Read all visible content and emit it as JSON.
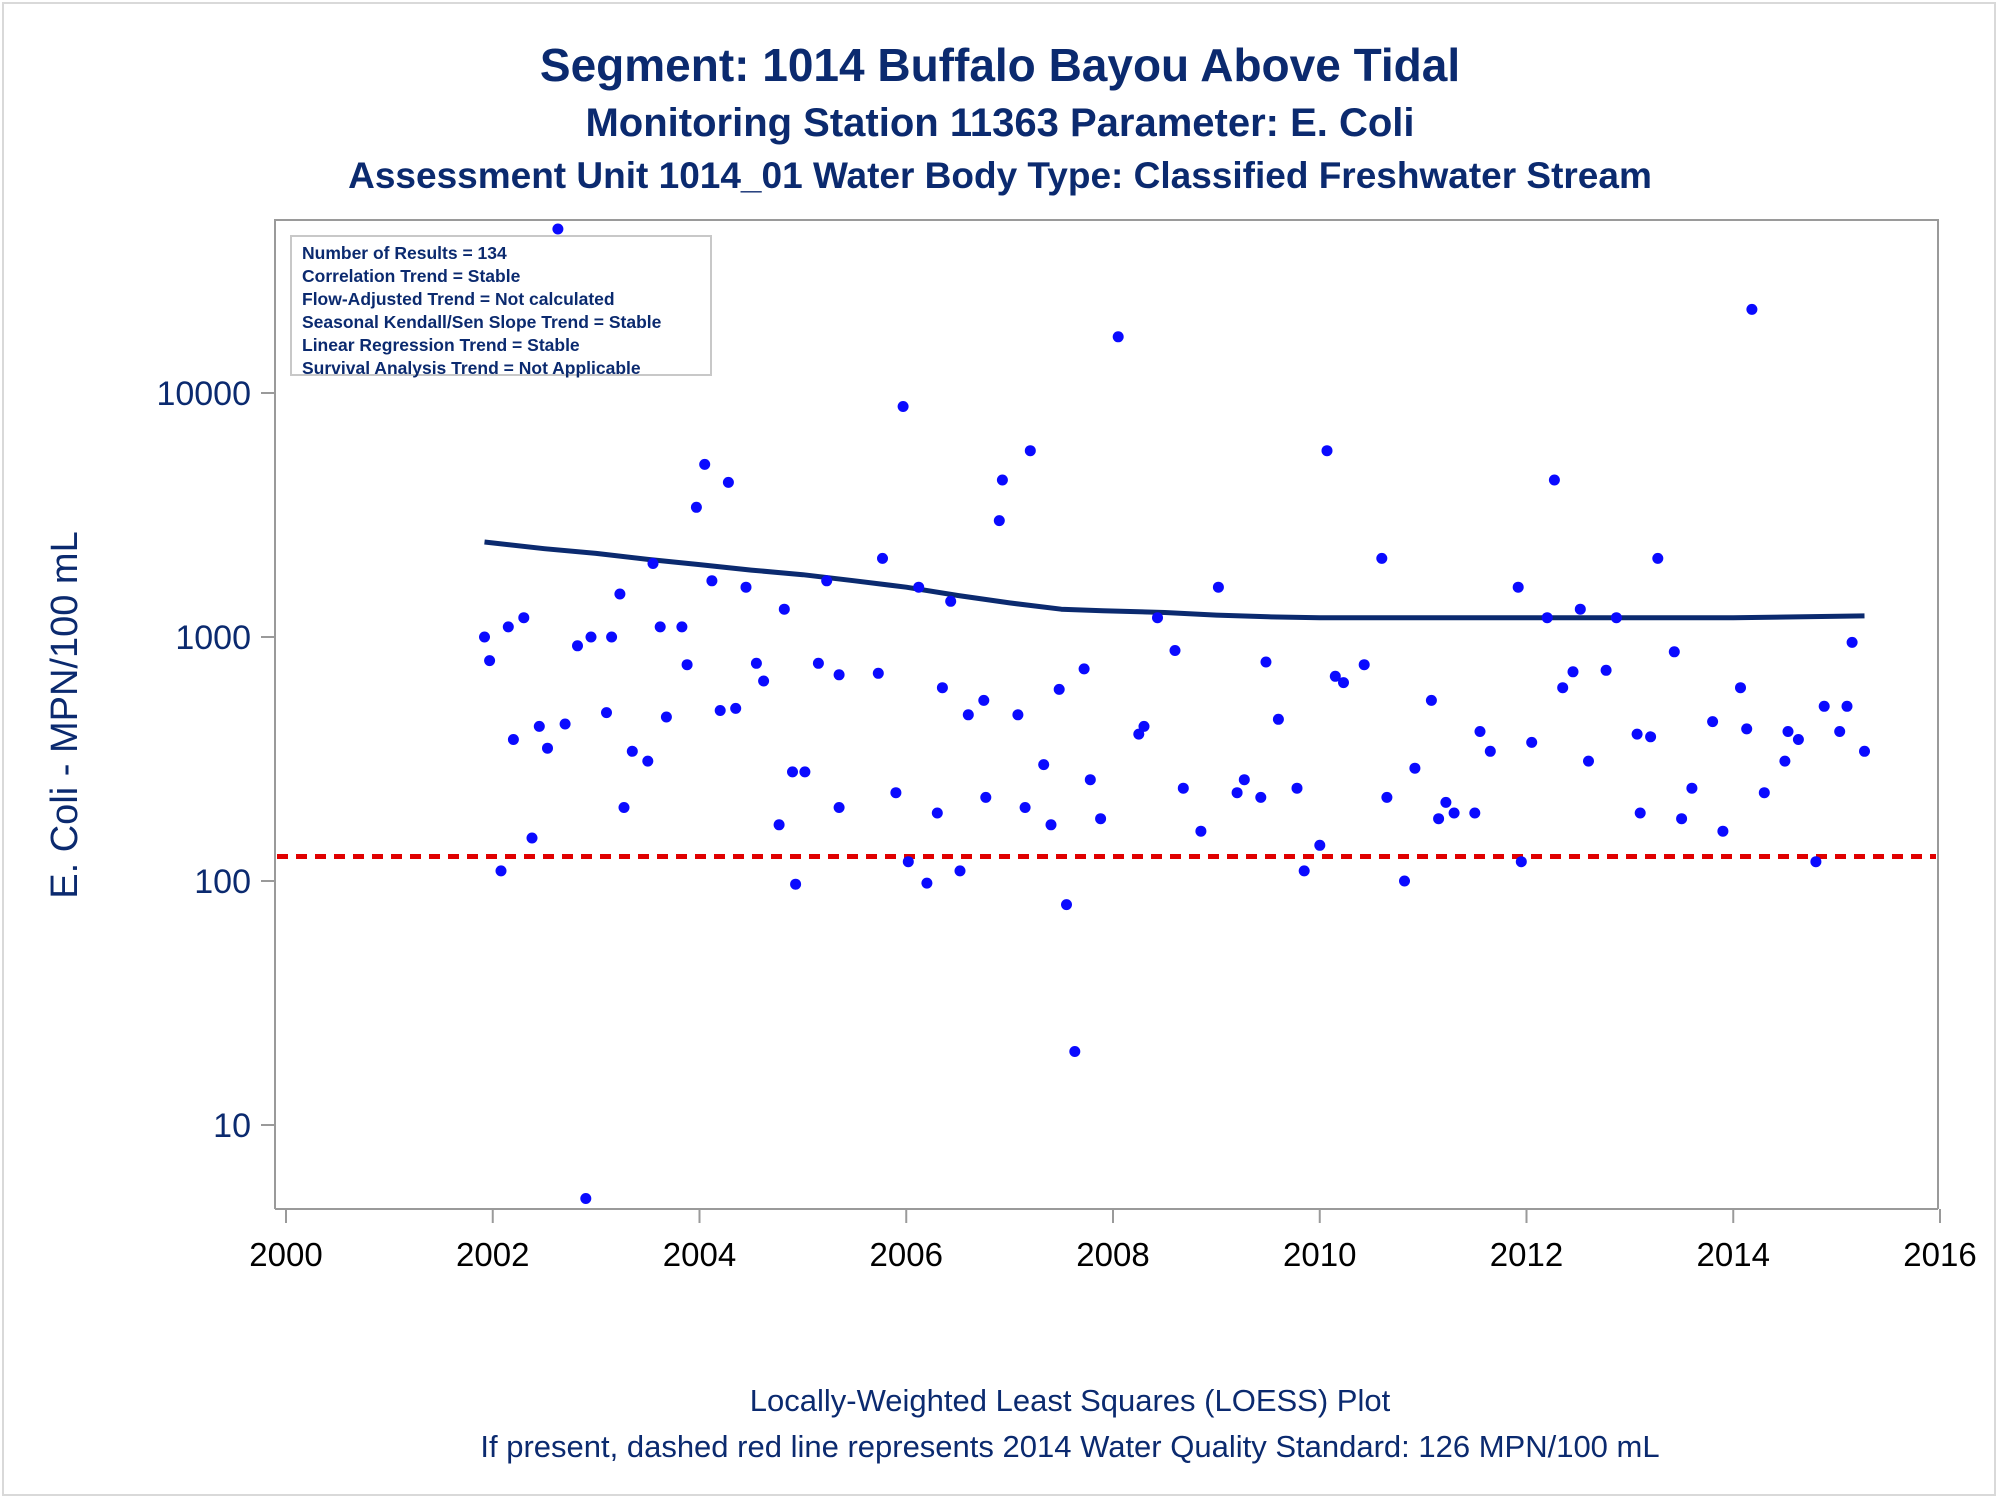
{
  "titles": {
    "line1": "Segment: 1014  Buffalo Bayou Above Tidal",
    "line2": "Monitoring Station 11363 Parameter: E. Coli",
    "line3": "Assessment Unit 1014_01   Water Body Type: Classified Freshwater Stream"
  },
  "footnotes": {
    "line1": "Locally-Weighted Least Squares (LOESS) Plot",
    "line2": "If present, dashed red line represents 2014 Water Quality Standard: 126 MPN/100 mL"
  },
  "stats": [
    "Number of Results = 134",
    "Correlation Trend = Stable",
    "Flow-Adjusted Trend = Not calculated",
    "Seasonal Kendall/Sen Slope Trend = Stable",
    "Linear Regression Trend = Stable",
    "Survival Analysis Trend = Not Applicable"
  ],
  "colors": {
    "title": "#0b2a6f",
    "points": "#0a0aff",
    "loess": "#0b2a6f",
    "standard": "#e00000",
    "axis": "#9a9a9a"
  },
  "chart_data": {
    "type": "scatter",
    "ylabel": "E. Coli - MPN/100 mL",
    "xlabel": "",
    "yscale": "log",
    "xlim": [
      2000,
      2016
    ],
    "ylim": [
      4.4,
      55000
    ],
    "xticks": [
      "2000",
      "2002",
      "2004",
      "2006",
      "2008",
      "2010",
      "2012",
      "2014",
      "2016"
    ],
    "yticks": [
      "10",
      "100",
      "1000",
      "10000"
    ],
    "standard_line": 126,
    "points": [
      [
        2001.92,
        1000
      ],
      [
        2001.97,
        800
      ],
      [
        2002.08,
        110
      ],
      [
        2002.15,
        1100
      ],
      [
        2002.2,
        380
      ],
      [
        2002.3,
        1200
      ],
      [
        2002.38,
        150
      ],
      [
        2002.45,
        430
      ],
      [
        2002.53,
        350
      ],
      [
        2002.63,
        47000
      ],
      [
        2002.7,
        440
      ],
      [
        2002.82,
        920
      ],
      [
        2002.9,
        5
      ],
      [
        2002.95,
        1000
      ],
      [
        2003.1,
        490
      ],
      [
        2003.15,
        1000
      ],
      [
        2003.23,
        1500
      ],
      [
        2003.27,
        200
      ],
      [
        2003.35,
        340
      ],
      [
        2003.5,
        310
      ],
      [
        2003.55,
        2000
      ],
      [
        2003.62,
        1100
      ],
      [
        2003.68,
        470
      ],
      [
        2003.83,
        1100
      ],
      [
        2003.88,
        770
      ],
      [
        2003.97,
        3400
      ],
      [
        2004.05,
        5100
      ],
      [
        2004.12,
        1700
      ],
      [
        2004.2,
        500
      ],
      [
        2004.28,
        4300
      ],
      [
        2004.35,
        510
      ],
      [
        2004.45,
        1600
      ],
      [
        2004.55,
        780
      ],
      [
        2004.62,
        660
      ],
      [
        2004.77,
        170
      ],
      [
        2004.82,
        1300
      ],
      [
        2004.9,
        280
      ],
      [
        2004.93,
        97
      ],
      [
        2005.02,
        280
      ],
      [
        2005.15,
        780
      ],
      [
        2005.23,
        1700
      ],
      [
        2005.35,
        200
      ],
      [
        2005.35,
        700
      ],
      [
        2005.73,
        710
      ],
      [
        2005.77,
        2100
      ],
      [
        2005.9,
        230
      ],
      [
        2005.97,
        8800
      ],
      [
        2006.02,
        120
      ],
      [
        2006.12,
        1600
      ],
      [
        2006.2,
        98
      ],
      [
        2006.3,
        190
      ],
      [
        2006.35,
        620
      ],
      [
        2006.43,
        1400
      ],
      [
        2006.52,
        110
      ],
      [
        2006.6,
        480
      ],
      [
        2006.77,
        220
      ],
      [
        2006.75,
        550
      ],
      [
        2006.9,
        3000
      ],
      [
        2006.93,
        4400
      ],
      [
        2007.08,
        480
      ],
      [
        2007.15,
        200
      ],
      [
        2007.2,
        5800
      ],
      [
        2007.33,
        300
      ],
      [
        2007.4,
        170
      ],
      [
        2007.48,
        610
      ],
      [
        2007.55,
        80
      ],
      [
        2007.63,
        20
      ],
      [
        2007.72,
        740
      ],
      [
        2007.78,
        260
      ],
      [
        2007.88,
        180
      ],
      [
        2008.05,
        17000
      ],
      [
        2008.25,
        400
      ],
      [
        2008.3,
        430
      ],
      [
        2008.43,
        1200
      ],
      [
        2008.6,
        880
      ],
      [
        2008.68,
        240
      ],
      [
        2008.85,
        160
      ],
      [
        2009.02,
        1600
      ],
      [
        2009.2,
        230
      ],
      [
        2009.27,
        260
      ],
      [
        2009.43,
        220
      ],
      [
        2009.48,
        790
      ],
      [
        2009.6,
        460
      ],
      [
        2009.78,
        240
      ],
      [
        2009.85,
        110
      ],
      [
        2010.0,
        140
      ],
      [
        2010.07,
        5800
      ],
      [
        2010.15,
        690
      ],
      [
        2010.23,
        650
      ],
      [
        2010.43,
        770
      ],
      [
        2010.6,
        2100
      ],
      [
        2010.65,
        220
      ],
      [
        2010.82,
        100
      ],
      [
        2010.92,
        290
      ],
      [
        2011.08,
        550
      ],
      [
        2011.15,
        180
      ],
      [
        2011.22,
        210
      ],
      [
        2011.3,
        190
      ],
      [
        2011.5,
        190
      ],
      [
        2011.55,
        410
      ],
      [
        2011.65,
        340
      ],
      [
        2011.92,
        1600
      ],
      [
        2011.95,
        120
      ],
      [
        2012.05,
        370
      ],
      [
        2012.2,
        1200
      ],
      [
        2012.27,
        4400
      ],
      [
        2012.35,
        620
      ],
      [
        2012.45,
        720
      ],
      [
        2012.52,
        1300
      ],
      [
        2012.6,
        310
      ],
      [
        2012.77,
        730
      ],
      [
        2012.87,
        1200
      ],
      [
        2013.07,
        400
      ],
      [
        2013.1,
        190
      ],
      [
        2013.2,
        390
      ],
      [
        2013.27,
        2100
      ],
      [
        2013.43,
        870
      ],
      [
        2013.5,
        180
      ],
      [
        2013.6,
        240
      ],
      [
        2013.8,
        450
      ],
      [
        2013.9,
        160
      ],
      [
        2014.07,
        620
      ],
      [
        2014.13,
        420
      ],
      [
        2014.18,
        22000
      ],
      [
        2014.3,
        230
      ],
      [
        2014.5,
        310
      ],
      [
        2014.53,
        410
      ],
      [
        2014.63,
        380
      ],
      [
        2014.8,
        120
      ],
      [
        2014.88,
        520
      ],
      [
        2015.03,
        410
      ],
      [
        2015.1,
        520
      ],
      [
        2015.15,
        950
      ],
      [
        2015.27,
        340
      ]
    ],
    "loess": [
      [
        2001.92,
        2450
      ],
      [
        2002.5,
        2300
      ],
      [
        2003.0,
        2200
      ],
      [
        2003.5,
        2080
      ],
      [
        2004.0,
        1980
      ],
      [
        2004.5,
        1880
      ],
      [
        2005.0,
        1800
      ],
      [
        2005.5,
        1700
      ],
      [
        2006.0,
        1600
      ],
      [
        2006.5,
        1480
      ],
      [
        2007.0,
        1380
      ],
      [
        2007.5,
        1300
      ],
      [
        2007.9,
        1280
      ],
      [
        2008.5,
        1260
      ],
      [
        2009.0,
        1230
      ],
      [
        2009.5,
        1210
      ],
      [
        2010.0,
        1200
      ],
      [
        2011.0,
        1200
      ],
      [
        2012.0,
        1200
      ],
      [
        2013.0,
        1200
      ],
      [
        2014.0,
        1200
      ],
      [
        2015.27,
        1220
      ]
    ]
  }
}
